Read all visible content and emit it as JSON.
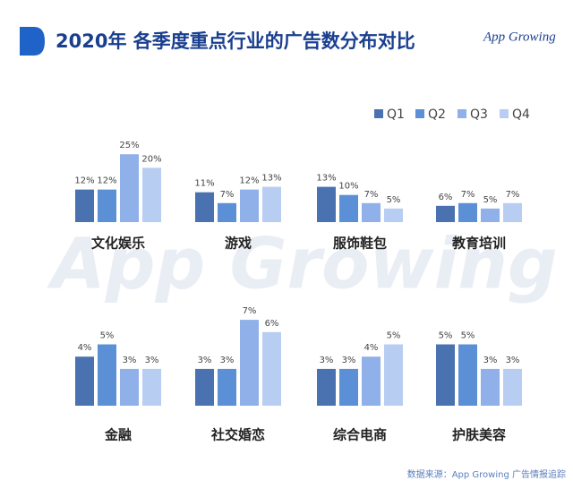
{
  "header": {
    "title": "2020年 各季度重点行业的广告数分布对比",
    "logo": "App Growing"
  },
  "watermark": "App Growing",
  "source": "数据来源：App Growing 广告情报追踪",
  "chart_data": [
    {
      "type": "bar",
      "ylim": [
        0,
        33
      ],
      "categories": [
        "文化娱乐",
        "游戏",
        "服饰鞋包",
        "教育培训"
      ],
      "series": [
        {
          "name": "Q1",
          "color": "#4a72b0",
          "values": [
            12,
            11,
            13,
            6
          ],
          "value_labels": [
            "12%",
            "11%",
            "13%",
            "6%"
          ]
        },
        {
          "name": "Q2",
          "color": "#5b8fd6",
          "values": [
            12,
            7,
            10,
            7
          ],
          "value_labels": [
            "12%",
            "7%",
            "10%",
            "7%"
          ]
        },
        {
          "name": "Q3",
          "color": "#8fb0e8",
          "values": [
            25,
            12,
            7,
            5
          ],
          "value_labels": [
            "25%",
            "12%",
            "7%",
            "5%"
          ]
        },
        {
          "name": "Q4",
          "color": "#b8cdf2",
          "values": [
            20,
            13,
            5,
            7
          ],
          "value_labels": [
            "20%",
            "13%",
            "5%",
            "7%"
          ]
        }
      ]
    },
    {
      "type": "bar",
      "ylim": [
        0,
        7.3
      ],
      "categories": [
        "金融",
        "社交婚恋",
        "综合电商",
        "护肤美容"
      ],
      "series": [
        {
          "name": "Q1",
          "color": "#4a72b0",
          "values": [
            4,
            3,
            3,
            5
          ],
          "value_labels": [
            "4%",
            "3%",
            "3%",
            "5%"
          ]
        },
        {
          "name": "Q2",
          "color": "#5b8fd6",
          "values": [
            5,
            3,
            3,
            5
          ],
          "value_labels": [
            "5%",
            "3%",
            "3%",
            "5%"
          ]
        },
        {
          "name": "Q3",
          "color": "#8fb0e8",
          "values": [
            3,
            7,
            4,
            3
          ],
          "value_labels": [
            "3%",
            "7%",
            "4%",
            "3%"
          ]
        },
        {
          "name": "Q4",
          "color": "#b8cdf2",
          "values": [
            3,
            6,
            5,
            3
          ],
          "value_labels": [
            "3%",
            "6%",
            "5%",
            "3%"
          ]
        }
      ]
    }
  ]
}
